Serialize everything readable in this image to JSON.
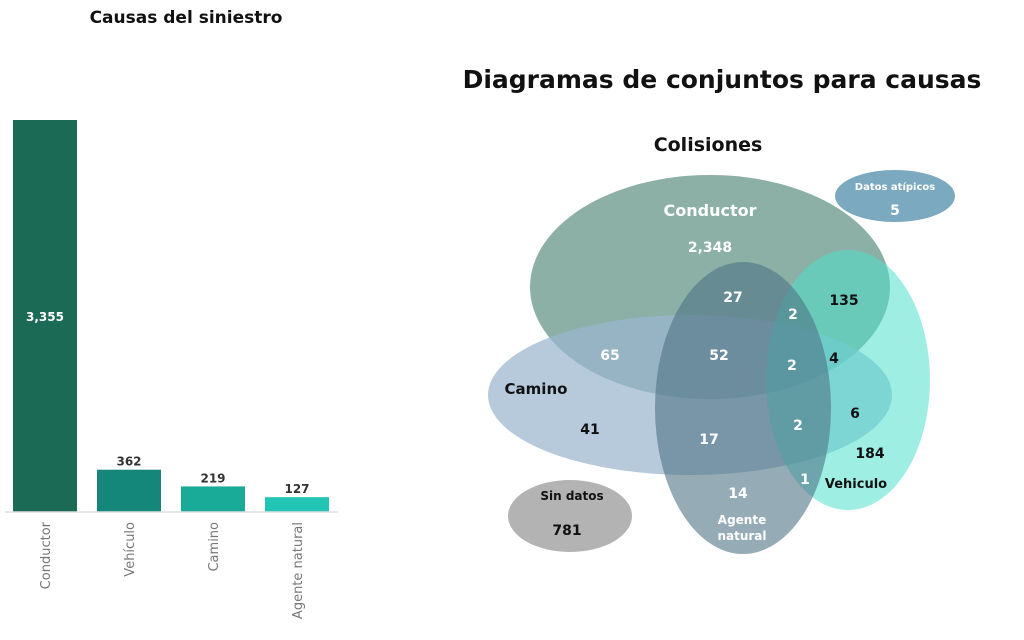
{
  "chart_data": [
    {
      "type": "bar",
      "title": "Causas del siniestro",
      "categories": [
        "Conductor",
        "Vehículo",
        "Camino",
        "Agente natural"
      ],
      "values": [
        3355,
        362,
        219,
        127
      ],
      "value_labels": [
        "3,355",
        "362",
        "219",
        "127"
      ],
      "colors": [
        "#1b6a55",
        "#15877a",
        "#1aab98",
        "#22c5b3"
      ],
      "xlabel": "",
      "ylabel": "",
      "ylim": [
        0,
        3355
      ],
      "grid": false
    },
    {
      "type": "venn",
      "title": "Diagramas de conjuntos para causas",
      "subtitle": "Colisiones",
      "sets": [
        {
          "name": "Conductor",
          "color": "#5f9282"
        },
        {
          "name": "Camino",
          "color": "#9ab5cf"
        },
        {
          "name": "Agente natural",
          "name_lines": [
            "Agente",
            "natural"
          ],
          "color": "#4f7385"
        },
        {
          "name": "Vehiculo",
          "color": "#4fe0cc"
        }
      ],
      "regions": [
        {
          "sets": [
            "Conductor"
          ],
          "value": "2,348"
        },
        {
          "sets": [
            "Conductor",
            "Agente natural"
          ],
          "value": "27"
        },
        {
          "sets": [
            "Conductor",
            "Agente natural",
            "Vehiculo"
          ],
          "value": "2"
        },
        {
          "sets": [
            "Conductor",
            "Vehiculo"
          ],
          "value": "135"
        },
        {
          "sets": [
            "Conductor",
            "Camino"
          ],
          "value": "65"
        },
        {
          "sets": [
            "Conductor",
            "Camino",
            "Agente natural"
          ],
          "value": "52"
        },
        {
          "sets": [
            "Conductor",
            "Camino",
            "Agente natural",
            "Vehiculo"
          ],
          "value": "2"
        },
        {
          "sets": [
            "Conductor",
            "Camino",
            "Vehiculo"
          ],
          "value": "4"
        },
        {
          "sets": [
            "Camino"
          ],
          "value": "41"
        },
        {
          "sets": [
            "Camino",
            "Agente natural"
          ],
          "value": "17"
        },
        {
          "sets": [
            "Camino",
            "Agente natural",
            "Vehiculo"
          ],
          "value": "2"
        },
        {
          "sets": [
            "Camino",
            "Vehiculo"
          ],
          "value": "6"
        },
        {
          "sets": [
            "Vehiculo"
          ],
          "value": "184"
        },
        {
          "sets": [
            "Agente natural",
            "Vehiculo"
          ],
          "value": "1"
        },
        {
          "sets": [
            "Agente natural"
          ],
          "value": "14"
        }
      ],
      "extras": [
        {
          "name": "Datos atípicos",
          "value": "5",
          "color": "#7aa9c0"
        },
        {
          "name": "Sin datos",
          "value": "781",
          "color": "#b3b3b3"
        }
      ]
    }
  ]
}
